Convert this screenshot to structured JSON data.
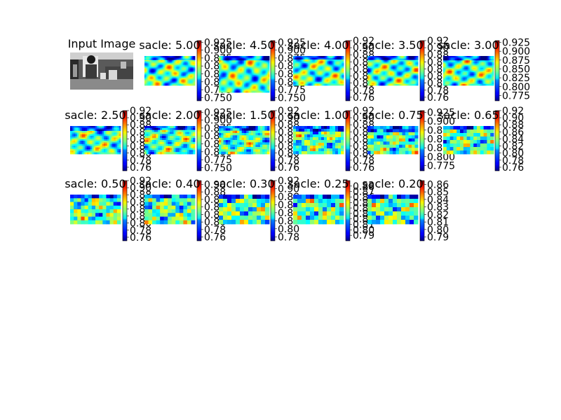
{
  "figure": {
    "background": "#ffffff",
    "colormap": "jet"
  },
  "input": {
    "title": "Input Image"
  },
  "chart_data": [
    {
      "type": "heatmap",
      "title": "sacle: 5.00",
      "colorbar": {
        "range": [
          0.74,
          0.93
        ],
        "ticks": [
          "0.750",
          "0.775",
          "0.800",
          "0.825",
          "0.850",
          "0.875",
          "0.900",
          "0.925"
        ]
      }
    },
    {
      "type": "heatmap",
      "title": "sacle: 4.50",
      "colorbar": {
        "range": [
          0.74,
          0.93
        ],
        "ticks": [
          "0.750",
          "0.775",
          "0.800",
          "0.825",
          "0.850",
          "0.875",
          "0.900",
          "0.925"
        ]
      }
    },
    {
      "type": "heatmap",
      "title": "sacle: 4.00",
      "colorbar": {
        "range": [
          0.75,
          0.92
        ],
        "ticks": [
          "0.76",
          "0.78",
          "0.80",
          "0.82",
          "0.84",
          "0.86",
          "0.88",
          "0.90",
          "0.92"
        ]
      }
    },
    {
      "type": "heatmap",
      "title": "sacle: 3.50",
      "colorbar": {
        "range": [
          0.75,
          0.92
        ],
        "ticks": [
          "0.76",
          "0.78",
          "0.80",
          "0.82",
          "0.84",
          "0.86",
          "0.88",
          "0.90",
          "0.92"
        ]
      }
    },
    {
      "type": "heatmap",
      "title": "sacle: 3.00",
      "colorbar": {
        "range": [
          0.76,
          0.93
        ],
        "ticks": [
          "0.775",
          "0.800",
          "0.825",
          "0.850",
          "0.875",
          "0.900",
          "0.925"
        ]
      }
    },
    {
      "type": "heatmap",
      "title": "sacle: 2.50",
      "colorbar": {
        "range": [
          0.75,
          0.92
        ],
        "ticks": [
          "0.76",
          "0.78",
          "0.80",
          "0.82",
          "0.84",
          "0.86",
          "0.88",
          "0.90",
          "0.92"
        ]
      }
    },
    {
      "type": "heatmap",
      "title": "sacle: 2.00",
      "colorbar": {
        "range": [
          0.74,
          0.93
        ],
        "ticks": [
          "0.750",
          "0.775",
          "0.800",
          "0.825",
          "0.850",
          "0.875",
          "0.900",
          "0.925"
        ]
      }
    },
    {
      "type": "heatmap",
      "title": "sacle: 1.50",
      "colorbar": {
        "range": [
          0.75,
          0.92
        ],
        "ticks": [
          "0.76",
          "0.78",
          "0.80",
          "0.82",
          "0.84",
          "0.86",
          "0.88",
          "0.90",
          "0.92"
        ]
      }
    },
    {
      "type": "heatmap",
      "title": "sacle: 1.00",
      "colorbar": {
        "range": [
          0.75,
          0.92
        ],
        "ticks": [
          "0.76",
          "0.78",
          "0.80",
          "0.82",
          "0.84",
          "0.86",
          "0.88",
          "0.90",
          "0.92"
        ]
      }
    },
    {
      "type": "heatmap",
      "title": "sacle: 0.75",
      "colorbar": {
        "range": [
          0.76,
          0.93
        ],
        "ticks": [
          "0.775",
          "0.800",
          "0.825",
          "0.850",
          "0.875",
          "0.900",
          "0.925"
        ]
      }
    },
    {
      "type": "heatmap",
      "title": "sacle: 0.65",
      "colorbar": {
        "range": [
          0.75,
          0.92
        ],
        "ticks": [
          "0.76",
          "0.78",
          "0.80",
          "0.82",
          "0.84",
          "0.86",
          "0.88",
          "0.90",
          "0.92"
        ]
      }
    },
    {
      "type": "heatmap",
      "title": "sacle: 0.50",
      "colorbar": {
        "range": [
          0.75,
          0.92
        ],
        "ticks": [
          "0.76",
          "0.78",
          "0.80",
          "0.82",
          "0.84",
          "0.86",
          "0.88",
          "0.90",
          "0.92"
        ]
      }
    },
    {
      "type": "heatmap",
      "title": "sacle: 0.40",
      "colorbar": {
        "range": [
          0.75,
          0.91
        ],
        "ticks": [
          "0.76",
          "0.78",
          "0.80",
          "0.82",
          "0.84",
          "0.86",
          "0.88",
          "0.90"
        ]
      }
    },
    {
      "type": "heatmap",
      "title": "sacle: 0.30",
      "colorbar": {
        "range": [
          0.77,
          0.92
        ],
        "ticks": [
          "0.78",
          "0.80",
          "0.82",
          "0.84",
          "0.86",
          "0.88",
          "0.90",
          "0.92"
        ]
      }
    },
    {
      "type": "heatmap",
      "title": "sacle: 0.25",
      "colorbar": {
        "range": [
          0.78,
          0.89
        ],
        "ticks": [
          "0.79",
          "0.80",
          "0.81",
          "0.82",
          "0.83",
          "0.84",
          "0.85",
          "0.86",
          "0.87",
          "0.88"
        ]
      }
    },
    {
      "type": "heatmap",
      "title": "sacle: 0.20",
      "colorbar": {
        "range": [
          0.785,
          0.865
        ],
        "ticks": [
          "0.79",
          "0.80",
          "0.81",
          "0.82",
          "0.83",
          "0.84",
          "0.85",
          "0.86"
        ]
      }
    }
  ]
}
